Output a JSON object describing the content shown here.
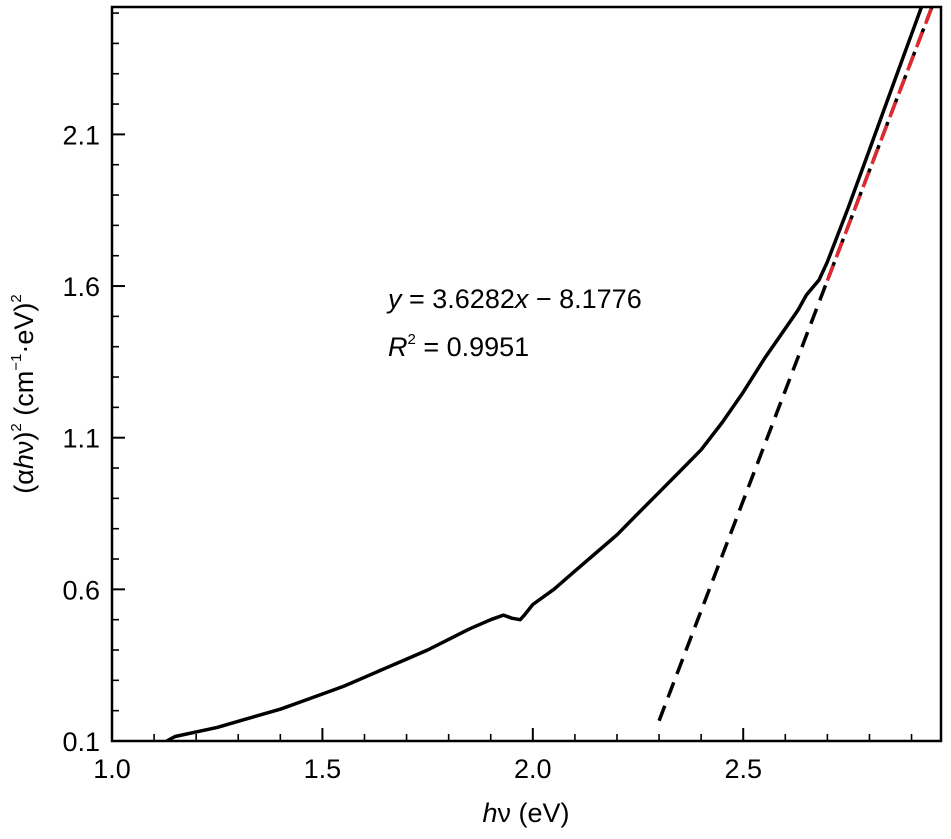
{
  "chart_data": {
    "type": "line",
    "xlabel": {
      "italic": "h",
      "rest": "ν (eV)"
    },
    "ylabel": {
      "open": "(α",
      "italic": "h",
      "mid": "ν)",
      "sup1": "2",
      "unit_open": " (cm",
      "sup2": "−1",
      "unit_mid": "·eV)",
      "sup3": "2"
    },
    "xlim": [
      1.0,
      2.97
    ],
    "ylim": [
      0.1,
      2.52
    ],
    "x_ticks": [
      1.0,
      1.5,
      2.0,
      2.5
    ],
    "x_tick_labels": [
      "1.0",
      "1.5",
      "2.0",
      "2.5"
    ],
    "x_minor_step": 0.1,
    "y_ticks": [
      0.1,
      0.6,
      1.1,
      1.6,
      2.1
    ],
    "y_tick_labels": [
      "0.1",
      "0.6",
      "1.1",
      "1.6",
      "2.1"
    ],
    "y_minor_step": 0.1,
    "grid": false,
    "series": [
      {
        "style": "solid",
        "color": "#000000",
        "x": [
          1.13,
          1.15,
          1.2,
          1.25,
          1.3,
          1.35,
          1.4,
          1.45,
          1.5,
          1.55,
          1.6,
          1.65,
          1.7,
          1.75,
          1.8,
          1.85,
          1.9,
          1.93,
          1.95,
          1.97,
          1.98,
          2.0,
          2.05,
          2.1,
          2.15,
          2.2,
          2.25,
          2.3,
          2.35,
          2.4,
          2.45,
          2.5,
          2.55,
          2.6,
          2.63,
          2.65,
          2.68,
          2.7,
          2.75,
          2.8,
          2.85,
          2.9,
          2.95
        ],
        "y": [
          0.1,
          0.115,
          0.13,
          0.145,
          0.165,
          0.185,
          0.205,
          0.23,
          0.255,
          0.28,
          0.31,
          0.34,
          0.37,
          0.4,
          0.435,
          0.47,
          0.5,
          0.515,
          0.505,
          0.5,
          0.515,
          0.55,
          0.6,
          0.66,
          0.72,
          0.78,
          0.85,
          0.92,
          0.99,
          1.06,
          1.15,
          1.25,
          1.36,
          1.46,
          1.52,
          1.57,
          1.62,
          1.68,
          1.86,
          2.05,
          2.24,
          2.43,
          2.62
        ]
      },
      {
        "style": "dashed",
        "color": "#000000",
        "x": [
          2.3,
          2.97
        ],
        "y": [
          0.167,
          2.598
        ]
      },
      {
        "style": "dashed",
        "color": "#e0282e",
        "x": [
          2.7,
          2.97
        ],
        "y": [
          1.618,
          2.598
        ]
      }
    ],
    "annotations": {
      "fit_line": {
        "y": "y",
        "eq": " = 3.6282",
        "x": "x",
        "rest": " − 8.1776"
      },
      "r2": {
        "r": "R",
        "sup": "2",
        "rest": " = 0.9951"
      }
    }
  }
}
